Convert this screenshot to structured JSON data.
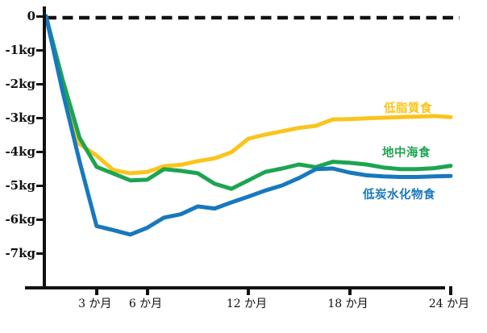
{
  "chart_data": {
    "type": "line",
    "title": "",
    "xlabel": "",
    "ylabel": "",
    "x_unit": "か月",
    "y_unit": "kg",
    "x_months": [
      0,
      1,
      2,
      3,
      4,
      5,
      6,
      7,
      8,
      9,
      10,
      11,
      12,
      13,
      14,
      15,
      16,
      17,
      18,
      19,
      20,
      21,
      22,
      23,
      24
    ],
    "xlim": [
      0,
      24.6
    ],
    "ylim": [
      -7.9,
      0.45
    ],
    "grid": false,
    "legend_position": "inline-labels-right",
    "baseline": {
      "value": 0,
      "style": "dashed",
      "color": "#111111"
    },
    "series": [
      {
        "key": "low_fat",
        "name": "低脂質食",
        "color": "#FBC41B",
        "values": [
          0,
          -2.0,
          -3.78,
          -4.12,
          -4.55,
          -4.64,
          -4.6,
          -4.43,
          -4.39,
          -4.28,
          -4.2,
          -4.02,
          -3.62,
          -3.5,
          -3.4,
          -3.3,
          -3.24,
          -3.05,
          -3.04,
          -3.02,
          -3.0,
          -2.98,
          -2.97,
          -2.95,
          -2.98
        ]
      },
      {
        "key": "mediterranean",
        "name": "地中海食",
        "color": "#1CA551",
        "values": [
          0,
          -1.9,
          -3.6,
          -4.45,
          -4.65,
          -4.85,
          -4.83,
          -4.52,
          -4.57,
          -4.64,
          -4.95,
          -5.1,
          -4.85,
          -4.6,
          -4.5,
          -4.38,
          -4.46,
          -4.3,
          -4.33,
          -4.38,
          -4.47,
          -4.52,
          -4.52,
          -4.49,
          -4.42
        ]
      },
      {
        "key": "low_carb",
        "name": "低炭水化物食",
        "color": "#1878BE",
        "values": [
          0,
          -2.25,
          -4.3,
          -6.2,
          -6.32,
          -6.45,
          -6.25,
          -5.95,
          -5.85,
          -5.62,
          -5.68,
          -5.5,
          -5.33,
          -5.15,
          -5.0,
          -4.78,
          -4.52,
          -4.5,
          -4.62,
          -4.7,
          -4.73,
          -4.75,
          -4.75,
          -4.73,
          -4.72
        ]
      }
    ],
    "xticks": [
      {
        "value": 3,
        "label": "3 か月"
      },
      {
        "value": 6,
        "label": "6 か月"
      },
      {
        "value": 12,
        "label": "12 か月"
      },
      {
        "value": 18,
        "label": "18 か月"
      },
      {
        "value": 24,
        "label": "24 か月"
      }
    ],
    "yticks": [
      {
        "value": 0,
        "label": "0"
      },
      {
        "value": -1,
        "label": "-1kg"
      },
      {
        "value": -2,
        "label": "-2kg"
      },
      {
        "value": -3,
        "label": "-3kg"
      },
      {
        "value": -4,
        "label": "-4kg"
      },
      {
        "value": -5,
        "label": "-5kg"
      },
      {
        "value": -6,
        "label": "-6kg"
      },
      {
        "value": -7,
        "label": "-7kg"
      }
    ]
  }
}
